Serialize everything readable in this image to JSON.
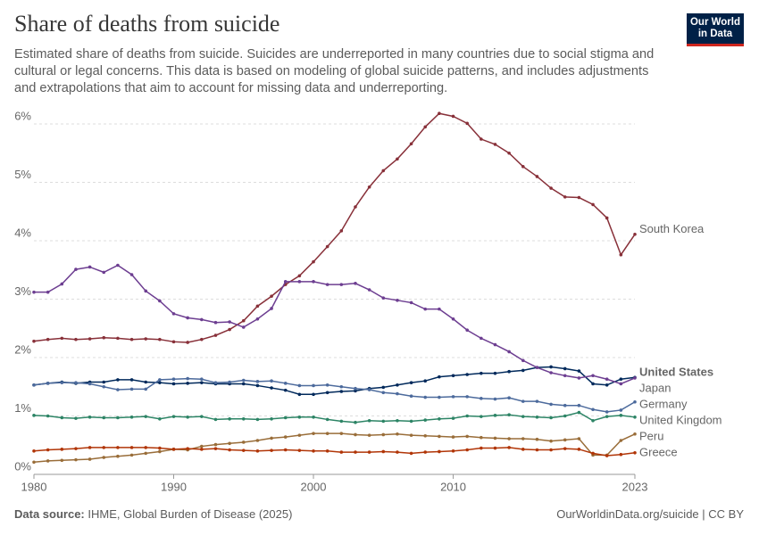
{
  "chart_data": {
    "type": "line",
    "title": "Share of deaths from suicide",
    "subtitle": "Estimated share of deaths from suicide. Suicides are underreported in many countries due to social stigma and cultural or legal concerns. This data is based on modeling of global suicide patterns, and includes adjustments and extrapolations that aim to account for missing data and underreporting.",
    "logo": [
      "Our World",
      "in Data"
    ],
    "source_label": "Data source:",
    "source": "IHME, Global Burden of Disease (2025)",
    "url": "OurWorldinData.org/suicide | CC BY",
    "x": [
      1980,
      1981,
      1982,
      1983,
      1984,
      1985,
      1986,
      1987,
      1988,
      1989,
      1990,
      1991,
      1992,
      1993,
      1994,
      1995,
      1996,
      1997,
      1998,
      1999,
      2000,
      2001,
      2002,
      2003,
      2004,
      2005,
      2006,
      2007,
      2008,
      2009,
      2010,
      2011,
      2012,
      2013,
      2014,
      2015,
      2016,
      2017,
      2018,
      2019,
      2020,
      2021,
      2022,
      2023
    ],
    "xlim": [
      1980,
      2023
    ],
    "xticks": [
      1980,
      1990,
      2000,
      2010,
      2023
    ],
    "ylim": [
      0,
      6
    ],
    "yticks": [
      {
        "value": 0,
        "label": "0%"
      },
      {
        "value": 1,
        "label": "1%"
      },
      {
        "value": 2,
        "label": "2%"
      },
      {
        "value": 3,
        "label": "3%"
      },
      {
        "value": 4,
        "label": "4%"
      },
      {
        "value": 5,
        "label": "5%"
      },
      {
        "value": 6,
        "label": "6%"
      }
    ],
    "grid": true,
    "series": [
      {
        "name": "South Korea",
        "color": "#883039",
        "values": [
          2.28,
          2.31,
          2.33,
          2.31,
          2.32,
          2.34,
          2.33,
          2.31,
          2.32,
          2.31,
          2.27,
          2.26,
          2.31,
          2.38,
          2.48,
          2.63,
          2.88,
          3.05,
          3.25,
          3.4,
          3.64,
          3.9,
          4.17,
          4.58,
          4.92,
          5.2,
          5.4,
          5.66,
          5.95,
          6.18,
          6.13,
          6.01,
          5.74,
          5.65,
          5.5,
          5.27,
          5.1,
          4.9,
          4.75,
          4.74,
          4.62,
          4.39,
          3.76,
          4.11
        ]
      },
      {
        "name": "United States",
        "color": "#00295b",
        "values": [
          1.53,
          1.56,
          1.58,
          1.56,
          1.58,
          1.58,
          1.62,
          1.62,
          1.58,
          1.57,
          1.55,
          1.56,
          1.57,
          1.55,
          1.55,
          1.55,
          1.52,
          1.48,
          1.44,
          1.37,
          1.37,
          1.4,
          1.42,
          1.43,
          1.47,
          1.49,
          1.53,
          1.57,
          1.6,
          1.67,
          1.69,
          1.71,
          1.73,
          1.73,
          1.76,
          1.78,
          1.83,
          1.84,
          1.81,
          1.77,
          1.55,
          1.53,
          1.63,
          1.66
        ]
      },
      {
        "name": "Japan",
        "color": "#6d3e91",
        "values": [
          3.12,
          3.12,
          3.26,
          3.51,
          3.55,
          3.46,
          3.58,
          3.42,
          3.14,
          2.97,
          2.75,
          2.68,
          2.65,
          2.6,
          2.61,
          2.52,
          2.66,
          2.84,
          3.3,
          3.3,
          3.3,
          3.25,
          3.25,
          3.27,
          3.16,
          3.02,
          2.98,
          2.94,
          2.83,
          2.83,
          2.66,
          2.47,
          2.33,
          2.22,
          2.1,
          1.95,
          1.83,
          1.74,
          1.69,
          1.65,
          1.69,
          1.63,
          1.55,
          1.65
        ]
      },
      {
        "name": "Germany",
        "color": "#4c6a9c",
        "values": [
          1.53,
          1.56,
          1.57,
          1.57,
          1.55,
          1.5,
          1.45,
          1.46,
          1.46,
          1.62,
          1.63,
          1.64,
          1.63,
          1.57,
          1.58,
          1.61,
          1.59,
          1.6,
          1.56,
          1.52,
          1.52,
          1.53,
          1.5,
          1.47,
          1.45,
          1.4,
          1.38,
          1.34,
          1.32,
          1.32,
          1.33,
          1.33,
          1.3,
          1.29,
          1.31,
          1.25,
          1.25,
          1.2,
          1.18,
          1.18,
          1.11,
          1.07,
          1.1,
          1.24
        ]
      },
      {
        "name": "United Kingdom",
        "color": "#2c8465",
        "values": [
          1.01,
          1.0,
          0.97,
          0.96,
          0.98,
          0.97,
          0.97,
          0.98,
          0.99,
          0.95,
          0.99,
          0.98,
          0.99,
          0.94,
          0.95,
          0.95,
          0.94,
          0.95,
          0.97,
          0.98,
          0.98,
          0.94,
          0.91,
          0.89,
          0.92,
          0.91,
          0.92,
          0.91,
          0.93,
          0.95,
          0.96,
          1.0,
          0.99,
          1.01,
          1.02,
          0.99,
          0.98,
          0.97,
          1.0,
          1.06,
          0.92,
          0.99,
          1.01,
          0.98
        ]
      },
      {
        "name": "Peru",
        "color": "#996d39",
        "values": [
          0.21,
          0.23,
          0.24,
          0.25,
          0.26,
          0.29,
          0.31,
          0.33,
          0.36,
          0.39,
          0.43,
          0.42,
          0.48,
          0.51,
          0.53,
          0.55,
          0.58,
          0.62,
          0.64,
          0.67,
          0.7,
          0.7,
          0.7,
          0.68,
          0.67,
          0.68,
          0.69,
          0.67,
          0.66,
          0.65,
          0.64,
          0.65,
          0.63,
          0.62,
          0.61,
          0.61,
          0.6,
          0.57,
          0.59,
          0.61,
          0.33,
          0.33,
          0.58,
          0.69
        ]
      },
      {
        "name": "Greece",
        "color": "#b13507",
        "values": [
          0.4,
          0.42,
          0.43,
          0.44,
          0.46,
          0.46,
          0.46,
          0.46,
          0.46,
          0.45,
          0.43,
          0.44,
          0.43,
          0.44,
          0.42,
          0.41,
          0.4,
          0.41,
          0.42,
          0.41,
          0.4,
          0.4,
          0.38,
          0.38,
          0.38,
          0.39,
          0.38,
          0.36,
          0.38,
          0.39,
          0.4,
          0.42,
          0.45,
          0.45,
          0.46,
          0.43,
          0.42,
          0.42,
          0.44,
          0.43,
          0.36,
          0.32,
          0.34,
          0.37
        ]
      }
    ]
  }
}
